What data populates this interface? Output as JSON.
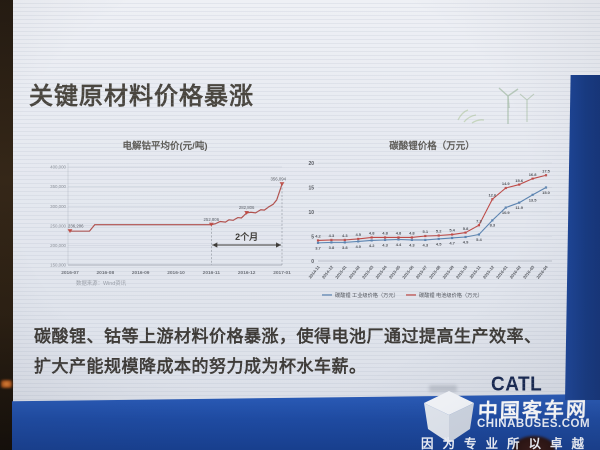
{
  "slide": {
    "title": "关键原材料价格暴涨",
    "body_text": "碳酸锂、钴等上游材料价格暴涨，使得电池厂通过提高生产效率、扩大产能规模降成本的努力成为杯水车薪。",
    "logo": "CATL"
  },
  "photo": {
    "watermark": {
      "site_name": "中国客车网",
      "site_url": "CHINABUSES.COM",
      "slogan": "因为专业所以卓越"
    }
  },
  "colors": {
    "cobalt_line": "#b2524e",
    "industrial_grade_line": "#5b84b1",
    "battery_grade_line": "#bf4b47",
    "banner_blue": "#1e4ba3",
    "catl_navy": "#182851"
  },
  "chart_data": [
    {
      "type": "line",
      "title": "电解钴平均价(元/吨)",
      "x_ticks": [
        "2016-07",
        "2016-08",
        "2016-09",
        "2016-10",
        "2016-11",
        "2016-12",
        "2017-01"
      ],
      "y_ticks": [
        "400,000",
        "350,000",
        "300,000",
        "250,000",
        "200,000",
        "150,000"
      ],
      "ylim": [
        150000,
        400000
      ],
      "series": [
        {
          "name": "电解钴平均价",
          "color": "#b2524e",
          "x": [
            0,
            0.55,
            0.7,
            1.0,
            1.6,
            2.2,
            3.0,
            3.6,
            4.0,
            4.12,
            4.25,
            4.4,
            4.5,
            4.62,
            4.75,
            4.85,
            5.0,
            5.12,
            5.25,
            5.4,
            5.5,
            5.62,
            5.75,
            5.85,
            6.0
          ],
          "values": [
            236206,
            236206,
            252806,
            252806,
            252806,
            252806,
            252806,
            252806,
            252806,
            255500,
            261000,
            259500,
            265500,
            264000,
            271000,
            270000,
            282806,
            284500,
            283000,
            291000,
            290000,
            298000,
            305000,
            316000,
            356094
          ]
        }
      ],
      "labeled_points": [
        {
          "x": 0,
          "value": 236206,
          "label": "236,206"
        },
        {
          "x": 4,
          "value": 252806,
          "label": "252,806"
        },
        {
          "x": 5,
          "value": 282806,
          "label": "282,806"
        },
        {
          "x": 6,
          "value": 356094,
          "label": "356,094"
        }
      ],
      "annotation": {
        "text": "2个月",
        "from_x": 4,
        "to_x": 6
      },
      "source": "数据来源：Wind资讯",
      "legend_position": "none",
      "grid": true
    },
    {
      "type": "line",
      "title": "碳酸锂价格（万元）",
      "categories": [
        "2014-11",
        "2014-12",
        "2015-01",
        "2015-02",
        "2015-03",
        "2015-04",
        "2015-05",
        "2015-06",
        "2015-07",
        "2015-08",
        "2015-09",
        "2015-10",
        "2015-11",
        "2015-12",
        "2016-01",
        "2016-02",
        "2016-03",
        "2016-04"
      ],
      "y_ticks": [
        20,
        15,
        10,
        5,
        0
      ],
      "ylim": [
        0,
        20
      ],
      "series": [
        {
          "name": "碳酸锂 工业级价格（万元）",
          "color": "#5b84b1",
          "values": [
            3.7,
            3.8,
            3.8,
            4.0,
            4.2,
            4.3,
            4.4,
            4.3,
            4.3,
            4.5,
            4.7,
            4.9,
            5.4,
            8.3,
            10.9,
            11.9,
            13.5,
            15.0
          ]
        },
        {
          "name": "碳酸锂 电池级价格（万元）",
          "color": "#bf4b47",
          "values": [
            4.2,
            4.3,
            4.3,
            4.5,
            4.8,
            4.8,
            4.8,
            4.8,
            5.1,
            5.2,
            5.4,
            5.8,
            7.3,
            12.6,
            14.9,
            15.6,
            16.8,
            17.5
          ]
        }
      ],
      "legend": [
        "碳酸锂 工业级价格（万元）",
        "碳酸锂 电池级价格（万元）"
      ],
      "legend_position": "bottom",
      "grid": true
    }
  ]
}
